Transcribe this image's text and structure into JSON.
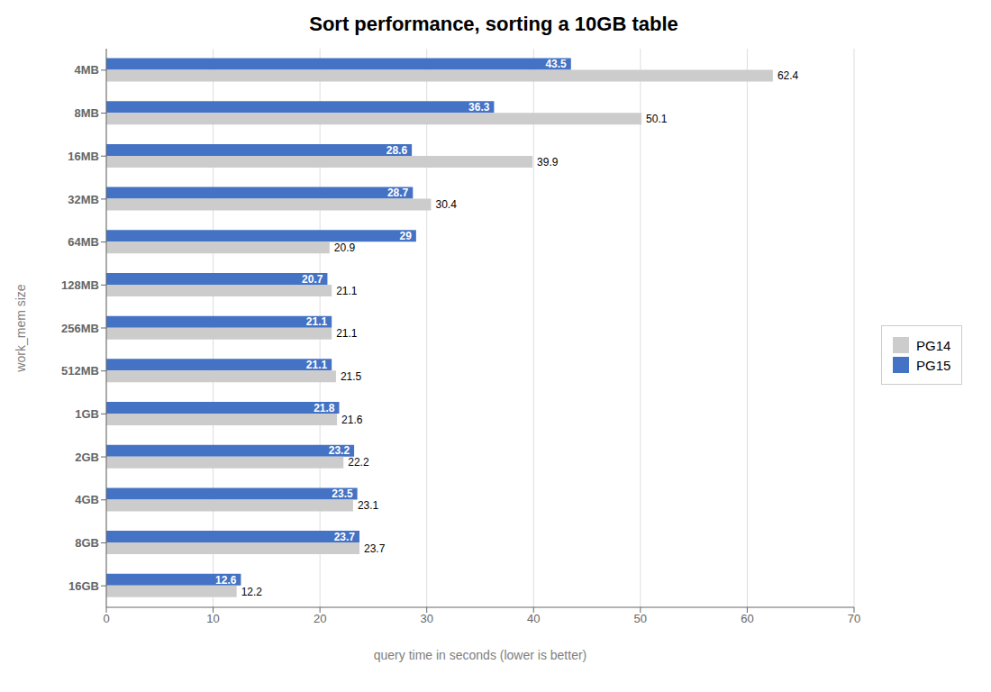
{
  "chart_data": {
    "type": "bar",
    "orientation": "horizontal",
    "title": "Sort performance, sorting a 10GB table",
    "xlabel": "query time in seconds (lower is better)",
    "ylabel": "work_mem size",
    "categories": [
      "4MB",
      "8MB",
      "16MB",
      "32MB",
      "64MB",
      "128MB",
      "256MB",
      "512MB",
      "1GB",
      "2GB",
      "4GB",
      "8GB",
      "16GB"
    ],
    "series": [
      {
        "name": "PG14",
        "color": "#cccccc",
        "values": [
          62.4,
          50.1,
          39.9,
          30.4,
          20.9,
          21.1,
          21.1,
          21.5,
          21.6,
          22.2,
          23.1,
          23.7,
          12.2
        ]
      },
      {
        "name": "PG15",
        "color": "#4472c4",
        "values": [
          43.5,
          36.3,
          28.6,
          28.7,
          29.0,
          20.7,
          21.1,
          21.1,
          21.8,
          23.2,
          23.5,
          23.7,
          12.6
        ]
      }
    ],
    "xlim": [
      0,
      70
    ],
    "xticks": [
      0,
      10,
      20,
      30,
      40,
      50,
      60,
      70
    ],
    "grid": true,
    "legend": "right",
    "data_labels": true
  }
}
